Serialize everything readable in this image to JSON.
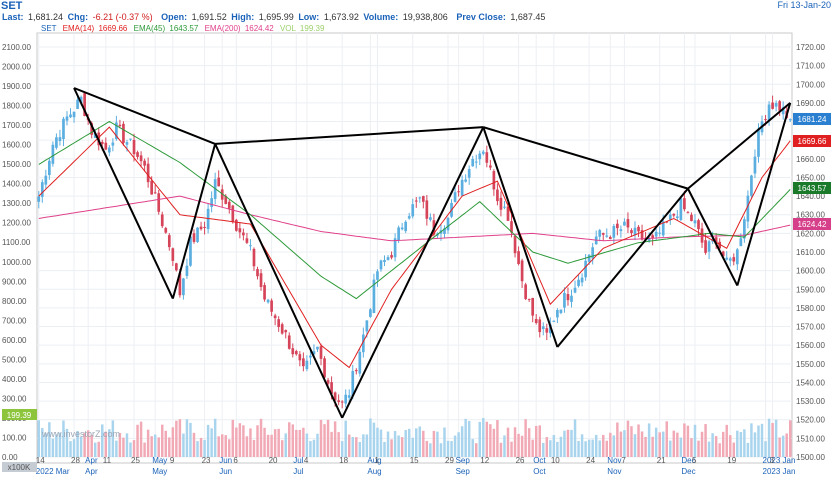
{
  "header": {
    "symbol": "SET",
    "last_label": "Last:",
    "last": "1,681.24",
    "chg_label": "Chg:",
    "chg": "-6.21 (-0.37 %)",
    "open_label": "Open:",
    "open": "1,691.52",
    "high_label": "High:",
    "high": "1,695.99",
    "low_label": "Low:",
    "low": "1,673.92",
    "volume_label": "Volume:",
    "volume": "19,938,806",
    "prev_label": "Prev Close:",
    "prev": "1,687.45",
    "date": "Fri 13-Jan-20"
  },
  "legend": {
    "symbol": "SET",
    "ema14": "EMA(14)",
    "ema14_value": "1669.66",
    "ema45": "EMA(45)",
    "ema45_value": "1643.57",
    "ema200": "EMA(200)",
    "ema200_value": "1624.42",
    "vol": "VOL",
    "vol_value": "199.39"
  },
  "watermark": "www.investorZ.com",
  "volume_unit": "x100K",
  "colors": {
    "up": "#5aaee0",
    "down": "#d6445a",
    "vol_up": "#a8d4ee",
    "vol_down": "#f2a9b6",
    "ema14": "#e02020",
    "ema45": "#2e9a3a",
    "ema200": "#e0408a",
    "last_badge": "#2a7fd0",
    "ema14_badge": "#e02020",
    "ema45_badge": "#1a7a2a",
    "ema200_badge": "#d6408a",
    "vol_badge": "#8cc43c"
  },
  "chart_data": {
    "type": "candlestick",
    "x_ticks": [
      {
        "label": "14",
        "i": 0
      },
      {
        "label": "28",
        "i": 10
      },
      {
        "label": "Apr",
        "i": 14
      },
      {
        "label": "11",
        "i": 19
      },
      {
        "label": "25",
        "i": 27
      },
      {
        "label": "May",
        "i": 33
      },
      {
        "label": "9",
        "i": 38
      },
      {
        "label": "23",
        "i": 47
      },
      {
        "label": "Jun",
        "i": 52
      },
      {
        "label": "6",
        "i": 56
      },
      {
        "label": "20",
        "i": 66
      },
      {
        "label": "Jul",
        "i": 73
      },
      {
        "label": "4",
        "i": 76
      },
      {
        "label": "18",
        "i": 86
      },
      {
        "label": "Aug",
        "i": 94
      },
      {
        "label": "1",
        "i": 96
      },
      {
        "label": "15",
        "i": 106
      },
      {
        "label": "29",
        "i": 116
      },
      {
        "label": "Sep",
        "i": 119
      },
      {
        "label": "12",
        "i": 126
      },
      {
        "label": "26",
        "i": 136
      },
      {
        "label": "Oct",
        "i": 141
      },
      {
        "label": "10",
        "i": 146
      },
      {
        "label": "24",
        "i": 156
      },
      {
        "label": "Nov",
        "i": 162
      },
      {
        "label": "7",
        "i": 166
      },
      {
        "label": "21",
        "i": 176
      },
      {
        "label": "Dec",
        "i": 183
      },
      {
        "label": "5",
        "i": 186
      },
      {
        "label": "19",
        "i": 196
      },
      {
        "label": "2023 Jan",
        "i": 206
      },
      {
        "label": "3",
        "i": 208
      }
    ],
    "month_labels": [
      {
        "label": "2022 Mar",
        "i": 0
      },
      {
        "label": "Apr",
        "i": 14
      },
      {
        "label": "May",
        "i": 33
      },
      {
        "label": "Jun",
        "i": 52
      },
      {
        "label": "Jul",
        "i": 73
      },
      {
        "label": "Aug",
        "i": 94
      },
      {
        "label": "Sep",
        "i": 119
      },
      {
        "label": "Oct",
        "i": 141
      },
      {
        "label": "Nov",
        "i": 162
      },
      {
        "label": "Dec",
        "i": 183
      },
      {
        "label": "2023 Jan",
        "i": 206
      }
    ],
    "bar_count": 214,
    "left_axis": {
      "min": 0,
      "max": 2100,
      "step": 100,
      "labels": [
        "2100.00",
        "2000.00",
        "1900.00",
        "1800.00",
        "1700.00",
        "1600.00",
        "1500.00",
        "1400.00",
        "1300.00",
        "1200.00",
        "1100.00",
        "1000.00",
        "900.00",
        "800.00",
        "700.00",
        "600.00",
        "500.00",
        "400.00",
        "300.00",
        "200.00",
        "100.00",
        "0.00"
      ]
    },
    "right_axis": {
      "min": 1500,
      "max": 1720,
      "step": 10,
      "labels": [
        "1720.00",
        "1710.00",
        "1700.00",
        "1690.00",
        "1680.00",
        "1670.00",
        "1660.00",
        "1650.00",
        "1640.00",
        "1630.00",
        "1620.00",
        "1610.00",
        "1600.00",
        "1590.00",
        "1580.00",
        "1570.00",
        "1560.00",
        "1550.00",
        "1540.00",
        "1530.00",
        "1520.00",
        "1510.00",
        "1500.00"
      ]
    },
    "right_axis_badges": {
      "last": "1681.24",
      "ema14": "1669.66",
      "ema45": "1643.57",
      "ema200": "1624.42"
    },
    "close_anchors": [
      [
        0,
        1640
      ],
      [
        4,
        1668
      ],
      [
        8,
        1682
      ],
      [
        12,
        1692
      ],
      [
        15,
        1675
      ],
      [
        19,
        1665
      ],
      [
        22,
        1676
      ],
      [
        27,
        1665
      ],
      [
        30,
        1655
      ],
      [
        34,
        1632
      ],
      [
        38,
        1608
      ],
      [
        40,
        1588
      ],
      [
        43,
        1615
      ],
      [
        47,
        1625
      ],
      [
        50,
        1647
      ],
      [
        53,
        1638
      ],
      [
        56,
        1625
      ],
      [
        60,
        1610
      ],
      [
        64,
        1585
      ],
      [
        70,
        1565
      ],
      [
        75,
        1545
      ],
      [
        79,
        1558
      ],
      [
        83,
        1535
      ],
      [
        86,
        1528
      ],
      [
        88,
        1535
      ],
      [
        92,
        1565
      ],
      [
        96,
        1600
      ],
      [
        100,
        1610
      ],
      [
        104,
        1630
      ],
      [
        108,
        1638
      ],
      [
        112,
        1622
      ],
      [
        116,
        1628
      ],
      [
        119,
        1645
      ],
      [
        123,
        1660
      ],
      [
        126,
        1666
      ],
      [
        130,
        1640
      ],
      [
        133,
        1630
      ],
      [
        137,
        1595
      ],
      [
        141,
        1570
      ],
      [
        144,
        1565
      ],
      [
        147,
        1580
      ],
      [
        151,
        1590
      ],
      [
        154,
        1600
      ],
      [
        158,
        1618
      ],
      [
        162,
        1620
      ],
      [
        166,
        1623
      ],
      [
        170,
        1618
      ],
      [
        174,
        1615
      ],
      [
        178,
        1625
      ],
      [
        182,
        1635
      ],
      [
        186,
        1625
      ],
      [
        189,
        1610
      ],
      [
        192,
        1618
      ],
      [
        195,
        1603
      ],
      [
        198,
        1610
      ],
      [
        201,
        1640
      ],
      [
        203,
        1665
      ],
      [
        205,
        1680
      ],
      [
        207,
        1690
      ],
      [
        210,
        1688
      ],
      [
        213,
        1681.24
      ]
    ],
    "ema14": [
      [
        0,
        1640
      ],
      [
        20,
        1677
      ],
      [
        40,
        1630
      ],
      [
        60,
        1625
      ],
      [
        80,
        1560
      ],
      [
        88,
        1548
      ],
      [
        100,
        1590
      ],
      [
        120,
        1640
      ],
      [
        130,
        1648
      ],
      [
        145,
        1582
      ],
      [
        160,
        1612
      ],
      [
        180,
        1628
      ],
      [
        195,
        1612
      ],
      [
        205,
        1650
      ],
      [
        213,
        1669.66
      ]
    ],
    "ema45": [
      [
        0,
        1657
      ],
      [
        20,
        1680
      ],
      [
        40,
        1658
      ],
      [
        60,
        1630
      ],
      [
        80,
        1597
      ],
      [
        90,
        1585
      ],
      [
        110,
        1615
      ],
      [
        125,
        1637
      ],
      [
        140,
        1610
      ],
      [
        150,
        1604
      ],
      [
        170,
        1615
      ],
      [
        190,
        1620
      ],
      [
        200,
        1618
      ],
      [
        213,
        1643.57
      ]
    ],
    "ema200": [
      [
        0,
        1628
      ],
      [
        40,
        1640
      ],
      [
        60,
        1630
      ],
      [
        80,
        1621
      ],
      [
        100,
        1616
      ],
      [
        120,
        1618
      ],
      [
        140,
        1620
      ],
      [
        160,
        1616
      ],
      [
        180,
        1618
      ],
      [
        200,
        1619
      ],
      [
        213,
        1624.42
      ]
    ],
    "pattern_lines": [
      [
        [
          10,
          1698
        ],
        [
          38,
          1585
        ]
      ],
      [
        [
          38,
          1585
        ],
        [
          50,
          1668
        ]
      ],
      [
        [
          10,
          1698
        ],
        [
          50,
          1668
        ]
      ],
      [
        [
          50,
          1668
        ],
        [
          86,
          1521
        ]
      ],
      [
        [
          86,
          1521
        ],
        [
          126,
          1677
        ]
      ],
      [
        [
          50,
          1668
        ],
        [
          126,
          1677
        ]
      ],
      [
        [
          126,
          1677
        ],
        [
          147,
          1559
        ]
      ],
      [
        [
          147,
          1559
        ],
        [
          184,
          1644
        ]
      ],
      [
        [
          126,
          1677
        ],
        [
          184,
          1644
        ]
      ],
      [
        [
          184,
          1644
        ],
        [
          198,
          1592
        ]
      ],
      [
        [
          198,
          1592
        ],
        [
          213,
          1690
        ]
      ],
      [
        [
          184,
          1644
        ],
        [
          213,
          1690
        ]
      ]
    ]
  }
}
